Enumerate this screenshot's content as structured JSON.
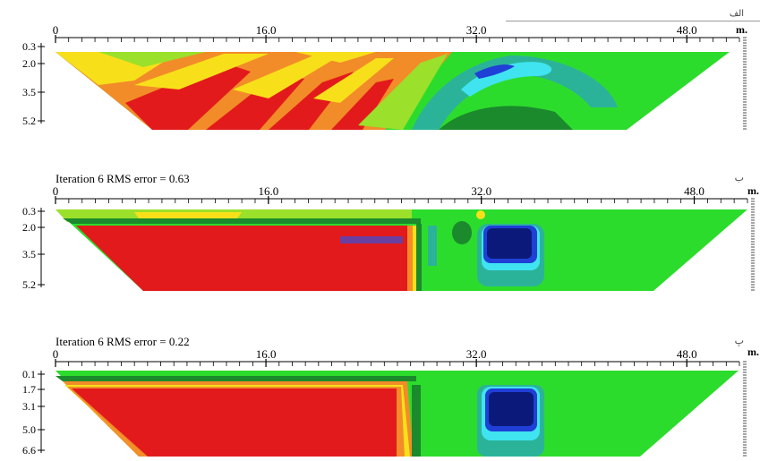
{
  "panels": [
    {
      "id": "alef",
      "label": "الف",
      "iteration_text": "",
      "x_ticks": [
        "0",
        "16.0",
        "32.0",
        "48.0"
      ],
      "x_tick_values": [
        0,
        16,
        32,
        48
      ],
      "unit": "m.",
      "depth_labels": [
        "0.3",
        "2.0",
        "3.5",
        "5.2"
      ]
    },
    {
      "id": "be",
      "label": "ب",
      "iteration_text": "Iteration 6 RMS error = 0.63",
      "x_ticks": [
        "0",
        "16.0",
        "32.0",
        "48.0"
      ],
      "x_tick_values": [
        0,
        16,
        32,
        48
      ],
      "unit": "m.",
      "depth_labels": [
        "0.3",
        "2.0",
        "3.5",
        "5.2"
      ]
    },
    {
      "id": "pe",
      "label": "پ",
      "iteration_text": "Iteration 6 RMS error = 0.22",
      "x_ticks": [
        "0",
        "16.0",
        "32.0",
        "48.0"
      ],
      "x_tick_values": [
        0,
        16,
        32,
        48
      ],
      "unit": "m.",
      "depth_labels": [
        "0.1",
        "1.7",
        "3.1",
        "5.0",
        "6.6"
      ]
    }
  ],
  "colors": {
    "red": "#e31a1c",
    "orange": "#f28c28",
    "yellow": "#f7e01a",
    "light_green": "#9be02a",
    "green": "#2cdc2c",
    "dark_green": "#1b8a2c",
    "teal": "#2bb39a",
    "cyan": "#3fe4f0",
    "blue": "#1f3fd6",
    "navy": "#0b1a7a",
    "purple": "#6b3fa0"
  },
  "chart_data": {
    "type": "heatmap",
    "description": "resistivity pseudosection / inversion models",
    "x_range": [
      0,
      52
    ],
    "panels": [
      {
        "depth_range": [
          0.3,
          5.2
        ],
        "x_ticks": [
          0,
          16,
          32,
          48
        ]
      },
      {
        "depth_range": [
          0.3,
          5.2
        ],
        "x_ticks": [
          0,
          16,
          32,
          48
        ],
        "rms_error": 0.63,
        "iteration": 6
      },
      {
        "depth_range": [
          0.1,
          6.6
        ],
        "x_ticks": [
          0,
          16,
          32,
          48
        ],
        "rms_error": 0.22,
        "iteration": 6
      }
    ]
  }
}
